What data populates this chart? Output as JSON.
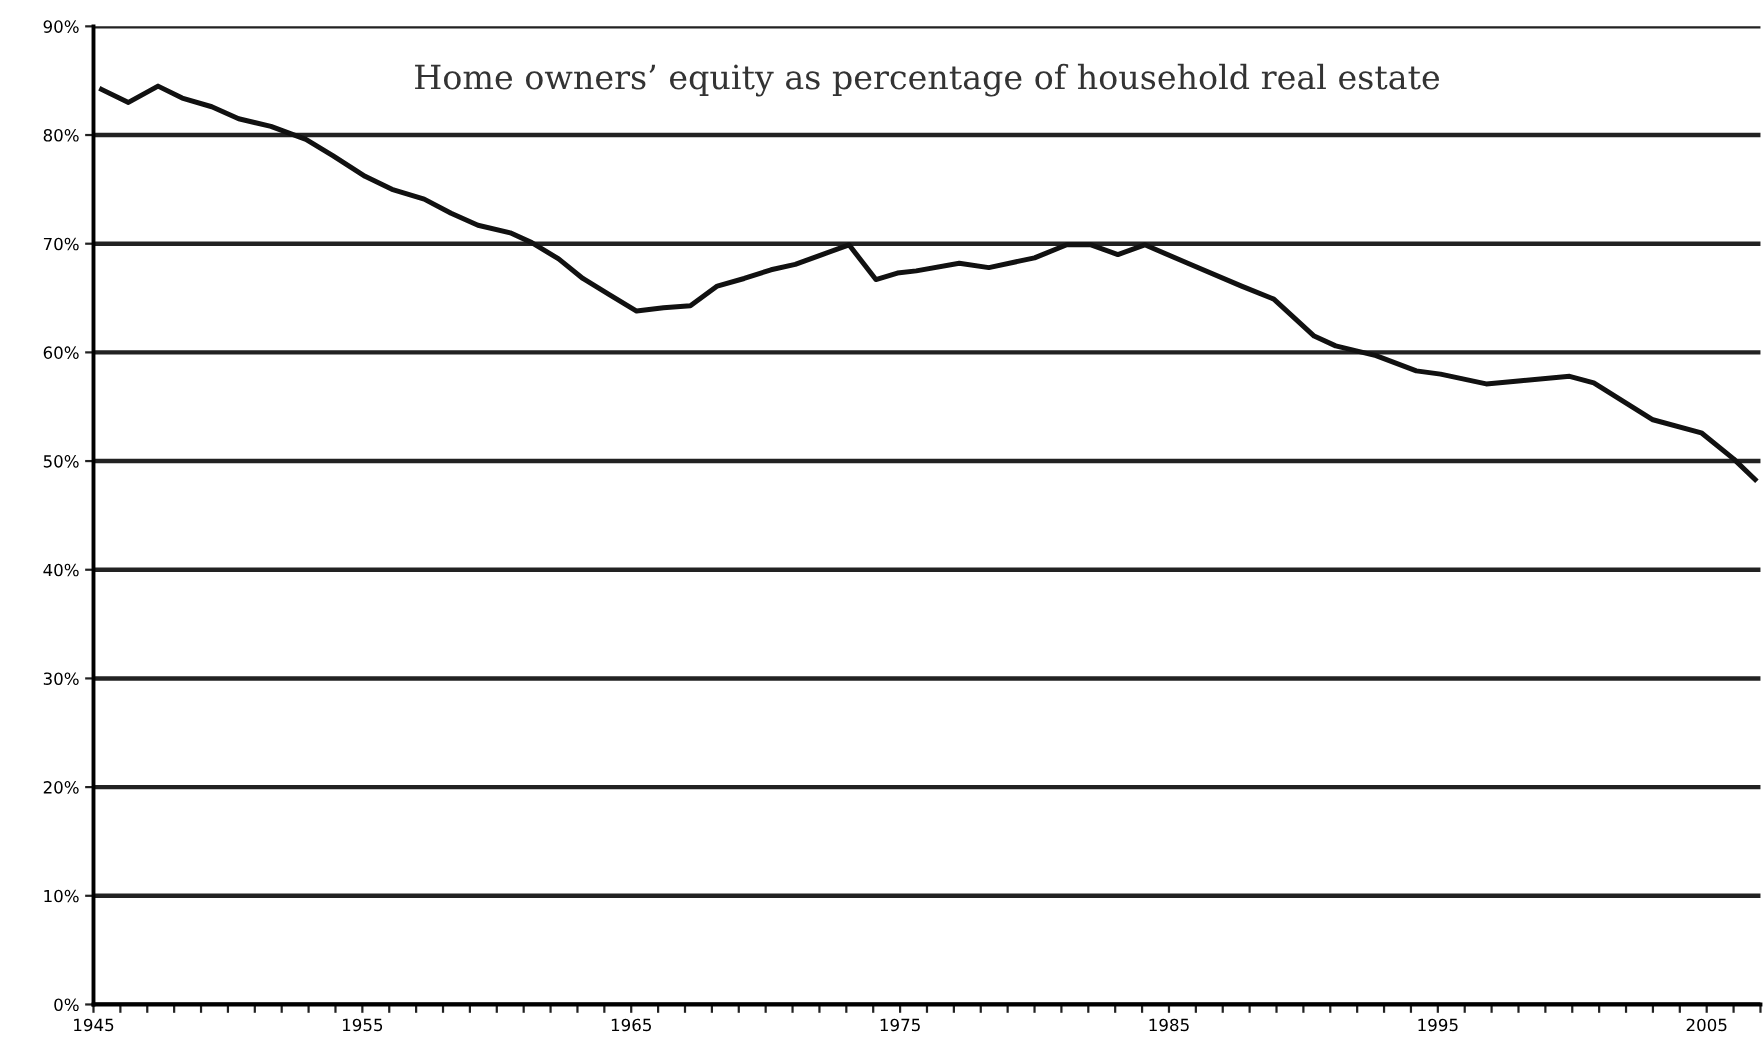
{
  "chart_data": {
    "type": "line",
    "title": "Home owners’ equity as percentage of household real estate",
    "x": [
      1945.3,
      1946.3,
      1947.4,
      1948.3,
      1949.4,
      1950.4,
      1951.6,
      1952.9,
      1953.9,
      1955.1,
      1956.1,
      1957.3,
      1958.3,
      1959.3,
      1960.5,
      1961.3,
      1962.3,
      1963.2,
      1964.2,
      1965.2,
      1966.2,
      1967.2,
      1968.2,
      1969.2,
      1970.2,
      1971.1,
      1972.1,
      1973.1,
      1974.1,
      1974.9,
      1975.6,
      1977.2,
      1978.3,
      1980.0,
      1981.2,
      1982.1,
      1983.1,
      1984.1,
      1985.7,
      1987.7,
      1988.9,
      1990.4,
      1991.2,
      1992.7,
      1994.2,
      1995.1,
      1996.8,
      1998.1,
      1999.9,
      2000.8,
      2003.0,
      2004.8,
      2006.0,
      2006.8
    ],
    "series": [
      {
        "color": "#111111",
        "values": [
          84.2,
          83.0,
          84.5,
          83.4,
          82.6,
          81.5,
          80.8,
          79.6,
          78.1,
          76.2,
          75.0,
          74.1,
          72.8,
          71.7,
          71.0,
          70.1,
          68.6,
          66.8,
          65.3,
          63.8,
          64.1,
          64.3,
          66.1,
          66.8,
          67.6,
          68.1,
          69.0,
          69.9,
          66.7,
          67.3,
          67.5,
          68.2,
          67.8,
          68.7,
          69.9,
          69.9,
          69.0,
          69.9,
          68.2,
          66.1,
          64.9,
          61.5,
          60.6,
          59.7,
          58.3,
          58.0,
          57.1,
          57.4,
          57.8,
          57.2,
          53.8,
          52.6,
          50.2,
          48.3
        ]
      }
    ],
    "xlim": [
      1945,
      2007
    ],
    "xticks": [
      1945,
      {
        "value": 1946,
        "label": null
      },
      {
        "value": 1947,
        "label": null
      },
      {
        "value": 1948,
        "label": null
      },
      {
        "value": 1949,
        "label": null
      },
      {
        "value": 1950,
        "label": null
      },
      {
        "value": 1951,
        "label": null
      },
      {
        "value": 1952,
        "label": null
      },
      {
        "value": 1953,
        "label": null
      },
      {
        "value": 1954,
        "label": null
      },
      1955,
      {
        "value": 1956,
        "label": null
      },
      {
        "value": 1957,
        "label": null
      },
      {
        "value": 1958,
        "label": null
      },
      {
        "value": 1959,
        "label": null
      },
      {
        "value": 1960,
        "label": null
      },
      {
        "value": 1961,
        "label": null
      },
      {
        "value": 1962,
        "label": null
      },
      {
        "value": 1963,
        "label": null
      },
      {
        "value": 1964,
        "label": null
      },
      1965,
      {
        "value": 1966,
        "label": null
      },
      {
        "value": 1967,
        "label": null
      },
      {
        "value": 1968,
        "label": null
      },
      {
        "value": 1969,
        "label": null
      },
      {
        "value": 1970,
        "label": null
      },
      {
        "value": 1971,
        "label": null
      },
      {
        "value": 1972,
        "label": null
      },
      {
        "value": 1973,
        "label": null
      },
      {
        "value": 1974,
        "label": null
      },
      1975,
      {
        "value": 1976,
        "label": null
      },
      {
        "value": 1977,
        "label": null
      },
      {
        "value": 1978,
        "label": null
      },
      {
        "value": 1979,
        "label": null
      },
      {
        "value": 1980,
        "label": null
      },
      {
        "value": 1981,
        "label": null
      },
      {
        "value": 1982,
        "label": null
      },
      {
        "value": 1983,
        "label": null
      },
      {
        "value": 1984,
        "label": null
      },
      1985,
      {
        "value": 1986,
        "label": null
      },
      {
        "value": 1987,
        "label": null
      },
      {
        "value": 1988,
        "label": null
      },
      {
        "value": 1989,
        "label": null
      },
      {
        "value": 1990,
        "label": null
      },
      {
        "value": 1991,
        "label": null
      },
      {
        "value": 1992,
        "label": null
      },
      {
        "value": 1993,
        "label": null
      },
      {
        "value": 1994,
        "label": null
      },
      1995,
      {
        "value": 1996,
        "label": null
      },
      {
        "value": 1997,
        "label": null
      },
      {
        "value": 1998,
        "label": null
      },
      {
        "value": 1999,
        "label": null
      },
      {
        "value": 2000,
        "label": null
      },
      {
        "value": 2001,
        "label": null
      },
      {
        "value": 2002,
        "label": null
      },
      {
        "value": 2003,
        "label": null
      },
      {
        "value": 2004,
        "label": null
      },
      2005,
      {
        "value": 2006,
        "label": null
      },
      {
        "value": 2007,
        "label": null
      }
    ],
    "ylim": [
      0,
      90
    ],
    "yticks": [
      {
        "value": 0,
        "label": "0%"
      },
      {
        "value": 10,
        "label": "10%"
      },
      {
        "value": 20,
        "label": "20%"
      },
      {
        "value": 30,
        "label": "30%"
      },
      {
        "value": 40,
        "label": "40%"
      },
      {
        "value": 50,
        "label": "50%"
      },
      {
        "value": 60,
        "label": "60%"
      },
      {
        "value": 70,
        "label": "70%"
      },
      {
        "value": 80,
        "label": "80%"
      },
      {
        "value": 90,
        "label": "90%"
      }
    ],
    "grid": "y",
    "marker": "none",
    "line_style": "solid"
  }
}
